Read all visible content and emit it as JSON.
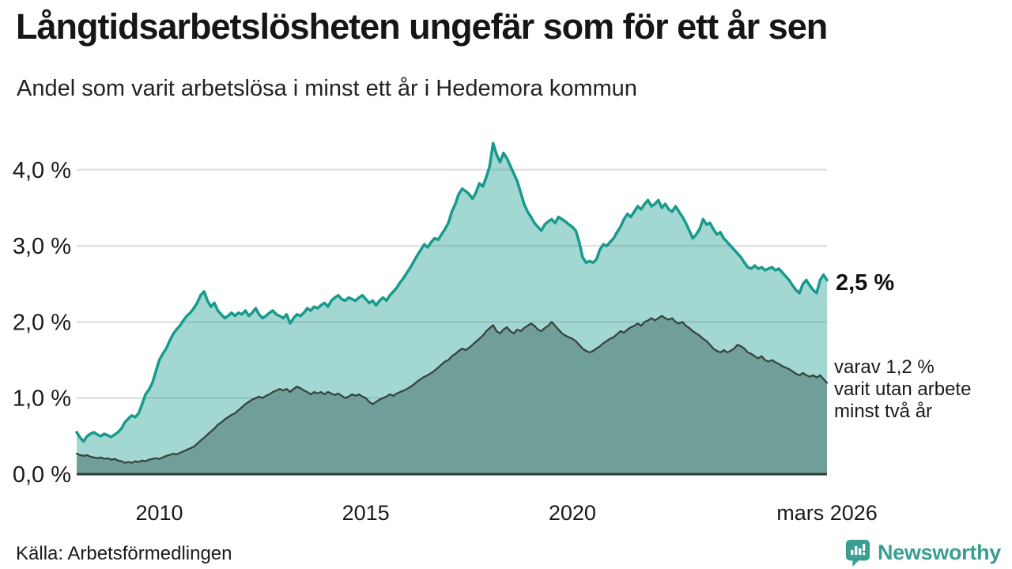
{
  "header": {
    "title": "Långtidsarbetslösheten ungefär som för ett år sen",
    "subtitle": "Andel som varit arbetslösa i minst ett år i Hedemora kommun"
  },
  "annotations": {
    "latest_total": "2,5 %",
    "subset_line1": "varav 1,2 %",
    "subset_line2": "varit utan arbete",
    "subset_line3": "minst två år"
  },
  "footer": {
    "source": "Källa: Arbetsförmedlingen",
    "brand": "Newsworthy"
  },
  "colors": {
    "accent_teal": "#189a8c",
    "light_fill": "rgba(24,154,140,0.40)",
    "dark_fill": "#709e99",
    "dark_stroke": "#37423e",
    "baseline": "#313c39",
    "gridline": "#e0e2e7",
    "text": "#1a1a1a",
    "brand_teal": "#3a9e92"
  },
  "chart_data": {
    "type": "area",
    "title": "Långtidsarbetslösheten ungefär som för ett år sen",
    "subtitle": "Andel som varit arbetslösa i minst ett år i Hedemora kommun",
    "unit": "%",
    "x_unit": "month",
    "x_start": "2008-01",
    "x_end": "2026-03",
    "ylim": [
      0,
      4.5
    ],
    "grid": true,
    "legend_position": "none",
    "y_ticks": [
      {
        "label": "0,0 %",
        "value": 0
      },
      {
        "label": "1,0 %",
        "value": 1
      },
      {
        "label": "2,0 %",
        "value": 2
      },
      {
        "label": "3,0 %",
        "value": 3
      },
      {
        "label": "4,0 %",
        "value": 4
      }
    ],
    "x_ticks": [
      {
        "label": "2010",
        "month_index": 24
      },
      {
        "label": "2015",
        "month_index": 84
      },
      {
        "label": "2020",
        "month_index": 144
      },
      {
        "label": "mars 2026",
        "month_index": 218
      }
    ],
    "series": [
      {
        "name": "Andel arbetslösa minst ett år",
        "latest_value": 2.5,
        "latest_label": "2,5 %",
        "stroke": "#189a8c",
        "stroke_width": 3.5,
        "fill": "rgba(24,154,140,0.40)",
        "values": [
          0.55,
          0.48,
          0.43,
          0.5,
          0.53,
          0.55,
          0.52,
          0.5,
          0.53,
          0.51,
          0.49,
          0.52,
          0.55,
          0.6,
          0.68,
          0.73,
          0.77,
          0.75,
          0.8,
          0.92,
          1.05,
          1.11,
          1.2,
          1.35,
          1.5,
          1.58,
          1.65,
          1.75,
          1.84,
          1.9,
          1.95,
          2.02,
          2.08,
          2.12,
          2.18,
          2.25,
          2.35,
          2.4,
          2.28,
          2.2,
          2.25,
          2.15,
          2.1,
          2.05,
          2.08,
          2.12,
          2.08,
          2.12,
          2.1,
          2.15,
          2.08,
          2.12,
          2.18,
          2.1,
          2.05,
          2.08,
          2.12,
          2.15,
          2.1,
          2.08,
          2.05,
          2.1,
          1.98,
          2.05,
          2.1,
          2.08,
          2.12,
          2.18,
          2.15,
          2.2,
          2.18,
          2.22,
          2.25,
          2.2,
          2.28,
          2.32,
          2.35,
          2.3,
          2.28,
          2.32,
          2.3,
          2.28,
          2.32,
          2.35,
          2.3,
          2.25,
          2.28,
          2.22,
          2.28,
          2.32,
          2.28,
          2.35,
          2.4,
          2.45,
          2.52,
          2.58,
          2.65,
          2.72,
          2.8,
          2.88,
          2.95,
          3.02,
          2.98,
          3.05,
          3.1,
          3.08,
          3.15,
          3.22,
          3.3,
          3.45,
          3.55,
          3.68,
          3.75,
          3.72,
          3.68,
          3.62,
          3.7,
          3.82,
          3.78,
          3.9,
          4.05,
          4.35,
          4.2,
          4.1,
          4.22,
          4.15,
          4.05,
          3.95,
          3.85,
          3.7,
          3.55,
          3.45,
          3.38,
          3.3,
          3.25,
          3.2,
          3.28,
          3.32,
          3.35,
          3.3,
          3.38,
          3.35,
          3.32,
          3.28,
          3.25,
          3.2,
          3.05,
          2.85,
          2.78,
          2.8,
          2.78,
          2.82,
          2.95,
          3.02,
          3.0,
          3.05,
          3.1,
          3.18,
          3.25,
          3.35,
          3.42,
          3.38,
          3.45,
          3.52,
          3.48,
          3.55,
          3.6,
          3.52,
          3.55,
          3.6,
          3.5,
          3.55,
          3.48,
          3.45,
          3.52,
          3.45,
          3.38,
          3.3,
          3.2,
          3.1,
          3.15,
          3.22,
          3.35,
          3.28,
          3.3,
          3.22,
          3.15,
          3.18,
          3.1,
          3.05,
          3.0,
          2.95,
          2.9,
          2.85,
          2.78,
          2.72,
          2.7,
          2.74,
          2.7,
          2.72,
          2.68,
          2.7,
          2.72,
          2.68,
          2.7,
          2.65,
          2.6,
          2.55,
          2.48,
          2.42,
          2.38,
          2.5,
          2.55,
          2.48,
          2.42,
          2.38,
          2.55,
          2.62,
          2.55
        ]
      },
      {
        "name": "varav arbetslösa minst två år",
        "latest_value": 1.2,
        "latest_label": "varav 1,2 % varit utan arbete minst två år",
        "stroke": "#37423e",
        "stroke_width": 2.25,
        "fill": "#709e99",
        "values": [
          0.27,
          0.25,
          0.24,
          0.25,
          0.23,
          0.22,
          0.21,
          0.22,
          0.2,
          0.21,
          0.19,
          0.2,
          0.18,
          0.17,
          0.15,
          0.16,
          0.15,
          0.17,
          0.16,
          0.18,
          0.17,
          0.19,
          0.2,
          0.21,
          0.2,
          0.22,
          0.24,
          0.25,
          0.27,
          0.26,
          0.28,
          0.3,
          0.32,
          0.34,
          0.36,
          0.4,
          0.44,
          0.48,
          0.52,
          0.56,
          0.6,
          0.65,
          0.68,
          0.72,
          0.75,
          0.78,
          0.8,
          0.84,
          0.88,
          0.92,
          0.95,
          0.98,
          1.0,
          1.02,
          1.0,
          1.03,
          1.05,
          1.08,
          1.1,
          1.12,
          1.1,
          1.12,
          1.08,
          1.12,
          1.15,
          1.13,
          1.1,
          1.08,
          1.05,
          1.08,
          1.06,
          1.08,
          1.05,
          1.08,
          1.06,
          1.04,
          1.06,
          1.03,
          1.0,
          1.02,
          1.05,
          1.03,
          1.05,
          1.02,
          1.0,
          0.95,
          0.92,
          0.95,
          0.98,
          1.0,
          1.02,
          1.05,
          1.03,
          1.06,
          1.08,
          1.1,
          1.12,
          1.15,
          1.18,
          1.22,
          1.25,
          1.28,
          1.3,
          1.33,
          1.36,
          1.4,
          1.44,
          1.48,
          1.5,
          1.55,
          1.58,
          1.62,
          1.65,
          1.63,
          1.66,
          1.7,
          1.74,
          1.78,
          1.82,
          1.88,
          1.92,
          1.96,
          1.88,
          1.85,
          1.9,
          1.93,
          1.88,
          1.85,
          1.9,
          1.88,
          1.92,
          1.95,
          1.98,
          1.95,
          1.9,
          1.88,
          1.92,
          1.95,
          2.0,
          1.95,
          1.9,
          1.85,
          1.82,
          1.8,
          1.78,
          1.75,
          1.7,
          1.65,
          1.62,
          1.6,
          1.62,
          1.65,
          1.68,
          1.72,
          1.75,
          1.78,
          1.8,
          1.84,
          1.88,
          1.86,
          1.9,
          1.93,
          1.95,
          1.98,
          1.95,
          2.0,
          2.02,
          2.05,
          2.02,
          2.05,
          2.08,
          2.05,
          2.03,
          2.05,
          2.0,
          1.98,
          2.0,
          1.95,
          1.92,
          1.88,
          1.85,
          1.82,
          1.78,
          1.75,
          1.7,
          1.65,
          1.62,
          1.6,
          1.63,
          1.6,
          1.62,
          1.65,
          1.7,
          1.68,
          1.65,
          1.6,
          1.58,
          1.55,
          1.52,
          1.55,
          1.5,
          1.48,
          1.5,
          1.47,
          1.45,
          1.42,
          1.4,
          1.38,
          1.35,
          1.32,
          1.3,
          1.33,
          1.3,
          1.28,
          1.3,
          1.27,
          1.3,
          1.25,
          1.2
        ]
      }
    ]
  }
}
